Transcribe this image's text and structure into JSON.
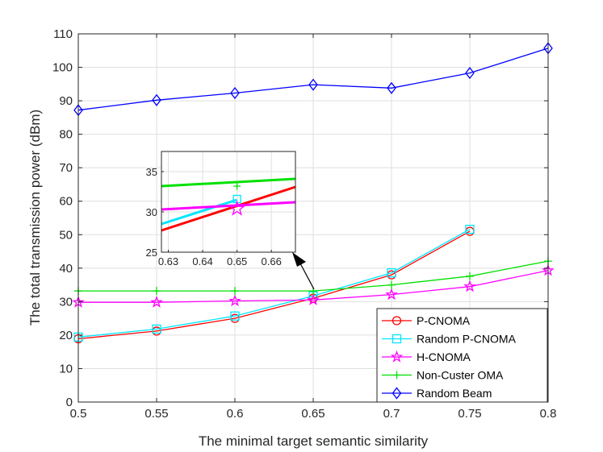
{
  "chart_data": {
    "type": "line",
    "xlabel": "The minimal target semantic similarity",
    "ylabel": "The total transmission power (dBm)",
    "xlim": [
      0.5,
      0.8
    ],
    "ylim": [
      0,
      110
    ],
    "xticks": [
      "0.5",
      "0.55",
      "0.6",
      "0.65",
      "0.7",
      "0.75",
      "0.8"
    ],
    "yticks": [
      "0",
      "10",
      "20",
      "30",
      "40",
      "50",
      "60",
      "70",
      "80",
      "90",
      "100",
      "110"
    ],
    "grid": true,
    "legend_position": "bottom-right",
    "series": [
      {
        "name": "P-CNOMA",
        "color": "#ff0000",
        "marker": "circle",
        "x": [
          0.5,
          0.55,
          0.6,
          0.65,
          0.7,
          0.75
        ],
        "values": [
          18.9,
          21.2,
          25.0,
          31.0,
          38.0,
          51.0
        ]
      },
      {
        "name": "Random P-CNOMA",
        "color": "#00e5ff",
        "marker": "square",
        "x": [
          0.5,
          0.55,
          0.6,
          0.65,
          0.7,
          0.75
        ],
        "values": [
          19.4,
          21.8,
          25.7,
          31.7,
          38.6,
          51.6
        ]
      },
      {
        "name": "H-CNOMA",
        "color": "#ff00ff",
        "marker": "star",
        "x": [
          0.5,
          0.55,
          0.6,
          0.65,
          0.7,
          0.75,
          0.8
        ],
        "values": [
          29.8,
          29.8,
          30.2,
          30.5,
          32.1,
          34.5,
          39.3
        ]
      },
      {
        "name": "Non-Custer OMA",
        "color": "#00e000",
        "marker": "plus",
        "x": [
          0.5,
          0.55,
          0.6,
          0.65,
          0.7,
          0.75,
          0.8
        ],
        "values": [
          33.2,
          33.2,
          33.2,
          33.2,
          35.0,
          37.6,
          42.1
        ]
      },
      {
        "name": "Random Beam",
        "color": "#0000ff",
        "marker": "diamond",
        "x": [
          0.5,
          0.55,
          0.6,
          0.65,
          0.7,
          0.75,
          0.8
        ],
        "values": [
          87.2,
          90.2,
          92.3,
          94.8,
          93.8,
          98.3,
          105.7
        ]
      }
    ],
    "inset": {
      "xlim": [
        0.628,
        0.667
      ],
      "ylim": [
        25,
        37.5
      ],
      "xticks": [
        "0.63",
        "0.64",
        "0.65",
        "0.66"
      ],
      "yticks": [
        "25",
        "30",
        "35"
      ],
      "lines": [
        {
          "name": "P-CNOMA",
          "color": "#ff0000",
          "x": [
            0.628,
            0.667
          ],
          "values": [
            27.7,
            33.1
          ]
        },
        {
          "name": "Random P-CNOMA",
          "color": "#00e5ff",
          "x": [
            0.628,
            0.65
          ],
          "values": [
            28.5,
            31.5
          ]
        },
        {
          "name": "H-CNOMA",
          "color": "#ff00ff",
          "x": [
            0.628,
            0.667
          ],
          "values": [
            30.3,
            31.2
          ]
        },
        {
          "name": "Non-Custer OMA",
          "color": "#00e000",
          "x": [
            0.628,
            0.667
          ],
          "values": [
            33.2,
            34.1
          ]
        }
      ],
      "markers": [
        {
          "series": "Random P-CNOMA",
          "marker": "square",
          "x": 0.65,
          "y": 31.6,
          "color": "#00e5ff"
        },
        {
          "series": "Non-Custer OMA",
          "marker": "plus",
          "x": 0.65,
          "y": 33.2,
          "color": "#00e000"
        },
        {
          "series": "H-CNOMA",
          "marker": "star",
          "x": 0.65,
          "y": 30.4,
          "color": "#ff00ff"
        }
      ]
    }
  }
}
